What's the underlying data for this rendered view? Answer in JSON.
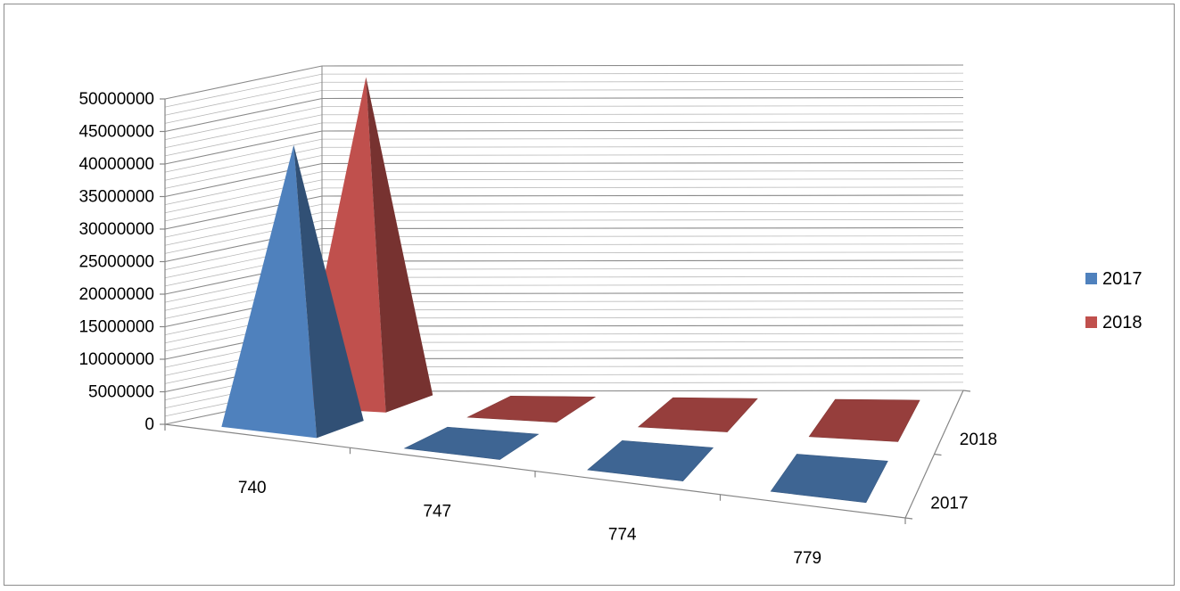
{
  "chart_data": {
    "type": "bar",
    "subtype": "3d-pyramid",
    "categories": [
      "740",
      "747",
      "774",
      "779"
    ],
    "series": [
      {
        "name": "2017",
        "color": "#4f81bd",
        "values": [
          43000000,
          120000,
          80000,
          60000
        ]
      },
      {
        "name": "2018",
        "color": "#c0504d",
        "values": [
          50000000,
          100000,
          80000,
          50000
        ]
      }
    ],
    "depth_labels": [
      "2017",
      "2018"
    ],
    "y_ticks": [
      "0",
      "5000000",
      "10000000",
      "15000000",
      "20000000",
      "25000000",
      "30000000",
      "35000000",
      "40000000",
      "45000000",
      "50000000"
    ],
    "ylim": [
      0,
      50000000
    ],
    "grid": true,
    "legend_position": "right"
  }
}
